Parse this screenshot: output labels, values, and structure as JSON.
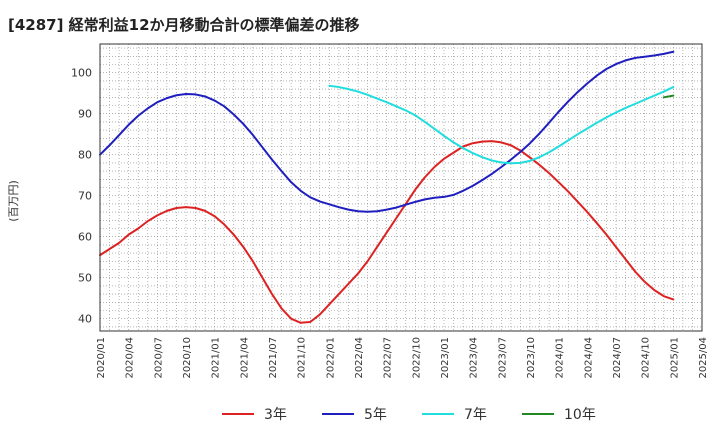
{
  "chart_data": {
    "type": "line",
    "title": "[4287]  経常利益12か月移動合計の標準偏差の推移",
    "ylabel": "(百万円)",
    "xlabel": "",
    "ylim": [
      37,
      107
    ],
    "yticks": [
      40,
      50,
      60,
      70,
      80,
      90,
      100
    ],
    "xlim": [
      "2020-01",
      "2025-04"
    ],
    "xticks": [
      "2020/01",
      "2020/04",
      "2020/07",
      "2020/10",
      "2021/01",
      "2021/04",
      "2021/07",
      "2021/10",
      "2022/01",
      "2022/04",
      "2022/07",
      "2022/10",
      "2023/01",
      "2023/04",
      "2023/07",
      "2023/10",
      "2024/01",
      "2024/04",
      "2024/07",
      "2024/10",
      "2025/01",
      "2025/04"
    ],
    "grid": true,
    "legend_position": "bottom",
    "series": [
      {
        "name": "3年",
        "color": "#dd2222",
        "points": [
          [
            "2020-01",
            55.5
          ],
          [
            "2020-02",
            57
          ],
          [
            "2020-03",
            58.5
          ],
          [
            "2020-04",
            60.5
          ],
          [
            "2020-05",
            62
          ],
          [
            "2020-06",
            63.8
          ],
          [
            "2020-07",
            65.2
          ],
          [
            "2020-08",
            66.3
          ],
          [
            "2020-09",
            67
          ],
          [
            "2020-10",
            67.2
          ],
          [
            "2020-11",
            67
          ],
          [
            "2020-12",
            66.3
          ],
          [
            "2021-01",
            65
          ],
          [
            "2021-02",
            63
          ],
          [
            "2021-03",
            60.5
          ],
          [
            "2021-04",
            57.5
          ],
          [
            "2021-05",
            54
          ],
          [
            "2021-06",
            50
          ],
          [
            "2021-07",
            46
          ],
          [
            "2021-08",
            42.5
          ],
          [
            "2021-09",
            40
          ],
          [
            "2021-10",
            39
          ],
          [
            "2021-11",
            39.2
          ],
          [
            "2021-12",
            41
          ],
          [
            "2022-01",
            43.5
          ],
          [
            "2022-02",
            46
          ],
          [
            "2022-03",
            48.5
          ],
          [
            "2022-04",
            51
          ],
          [
            "2022-05",
            54
          ],
          [
            "2022-06",
            57.5
          ],
          [
            "2022-07",
            61
          ],
          [
            "2022-08",
            64.5
          ],
          [
            "2022-09",
            68
          ],
          [
            "2022-10",
            71.5
          ],
          [
            "2022-11",
            74.5
          ],
          [
            "2022-12",
            77
          ],
          [
            "2023-01",
            79
          ],
          [
            "2023-02",
            80.5
          ],
          [
            "2023-03",
            82
          ],
          [
            "2023-04",
            82.8
          ],
          [
            "2023-05",
            83.2
          ],
          [
            "2023-06",
            83.3
          ],
          [
            "2023-07",
            83
          ],
          [
            "2023-08",
            82.3
          ],
          [
            "2023-09",
            81
          ],
          [
            "2023-10",
            79.3
          ],
          [
            "2023-11",
            77.5
          ],
          [
            "2023-12",
            75.5
          ],
          [
            "2024-01",
            73.3
          ],
          [
            "2024-02",
            71
          ],
          [
            "2024-03",
            68.5
          ],
          [
            "2024-04",
            66
          ],
          [
            "2024-05",
            63.3
          ],
          [
            "2024-06",
            60.5
          ],
          [
            "2024-07",
            57.5
          ],
          [
            "2024-08",
            54.5
          ],
          [
            "2024-09",
            51.5
          ],
          [
            "2024-10",
            49
          ],
          [
            "2024-11",
            47
          ],
          [
            "2024-12",
            45.5
          ],
          [
            "2025-01",
            44.7
          ]
        ]
      },
      {
        "name": "5年",
        "color": "#1f1fbf",
        "points": [
          [
            "2020-01",
            80
          ],
          [
            "2020-02",
            82.3
          ],
          [
            "2020-03",
            84.8
          ],
          [
            "2020-04",
            87.3
          ],
          [
            "2020-05",
            89.5
          ],
          [
            "2020-06",
            91.3
          ],
          [
            "2020-07",
            92.8
          ],
          [
            "2020-08",
            93.8
          ],
          [
            "2020-09",
            94.5
          ],
          [
            "2020-10",
            94.8
          ],
          [
            "2020-11",
            94.7
          ],
          [
            "2020-12",
            94.2
          ],
          [
            "2021-01",
            93.2
          ],
          [
            "2021-02",
            91.8
          ],
          [
            "2021-03",
            89.8
          ],
          [
            "2021-04",
            87.5
          ],
          [
            "2021-05",
            84.8
          ],
          [
            "2021-06",
            81.8
          ],
          [
            "2021-07",
            78.8
          ],
          [
            "2021-08",
            76
          ],
          [
            "2021-09",
            73.3
          ],
          [
            "2021-10",
            71.2
          ],
          [
            "2021-11",
            69.6
          ],
          [
            "2021-12",
            68.6
          ],
          [
            "2022-01",
            67.9
          ],
          [
            "2022-02",
            67.2
          ],
          [
            "2022-03",
            66.6
          ],
          [
            "2022-04",
            66.2
          ],
          [
            "2022-05",
            66.1
          ],
          [
            "2022-06",
            66.2
          ],
          [
            "2022-07",
            66.6
          ],
          [
            "2022-08",
            67.1
          ],
          [
            "2022-09",
            67.8
          ],
          [
            "2022-10",
            68.5
          ],
          [
            "2022-11",
            69.1
          ],
          [
            "2022-12",
            69.5
          ],
          [
            "2023-01",
            69.7
          ],
          [
            "2023-02",
            70.2
          ],
          [
            "2023-03",
            71.2
          ],
          [
            "2023-04",
            72.4
          ],
          [
            "2023-05",
            73.8
          ],
          [
            "2023-06",
            75.3
          ],
          [
            "2023-07",
            77
          ],
          [
            "2023-08",
            78.8
          ],
          [
            "2023-09",
            80.7
          ],
          [
            "2023-10",
            82.8
          ],
          [
            "2023-11",
            85.2
          ],
          [
            "2023-12",
            87.8
          ],
          [
            "2024-01",
            90.5
          ],
          [
            "2024-02",
            93
          ],
          [
            "2024-03",
            95.3
          ],
          [
            "2024-04",
            97.4
          ],
          [
            "2024-05",
            99.3
          ],
          [
            "2024-06",
            100.9
          ],
          [
            "2024-07",
            102.1
          ],
          [
            "2024-08",
            103
          ],
          [
            "2024-09",
            103.6
          ],
          [
            "2024-10",
            103.9
          ],
          [
            "2024-11",
            104.2
          ],
          [
            "2024-12",
            104.6
          ],
          [
            "2025-01",
            105.1
          ]
        ]
      },
      {
        "name": "7年",
        "color": "#22dddd",
        "points": [
          [
            "2022-01",
            96.8
          ],
          [
            "2022-02",
            96.5
          ],
          [
            "2022-03",
            96
          ],
          [
            "2022-04",
            95.4
          ],
          [
            "2022-05",
            94.6
          ],
          [
            "2022-06",
            93.7
          ],
          [
            "2022-07",
            92.8
          ],
          [
            "2022-08",
            91.8
          ],
          [
            "2022-09",
            90.8
          ],
          [
            "2022-10",
            89.6
          ],
          [
            "2022-11",
            88
          ],
          [
            "2022-12",
            86.3
          ],
          [
            "2023-01",
            84.6
          ],
          [
            "2023-02",
            83
          ],
          [
            "2023-03",
            81.6
          ],
          [
            "2023-04",
            80.4
          ],
          [
            "2023-05",
            79.4
          ],
          [
            "2023-06",
            78.6
          ],
          [
            "2023-07",
            78.1
          ],
          [
            "2023-08",
            77.9
          ],
          [
            "2023-09",
            78
          ],
          [
            "2023-10",
            78.5
          ],
          [
            "2023-11",
            79.4
          ],
          [
            "2023-12",
            80.6
          ],
          [
            "2024-01",
            82
          ],
          [
            "2024-02",
            83.5
          ],
          [
            "2024-03",
            85
          ],
          [
            "2024-04",
            86.4
          ],
          [
            "2024-05",
            87.8
          ],
          [
            "2024-06",
            89.1
          ],
          [
            "2024-07",
            90.3
          ],
          [
            "2024-08",
            91.4
          ],
          [
            "2024-09",
            92.4
          ],
          [
            "2024-10",
            93.4
          ],
          [
            "2024-11",
            94.4
          ],
          [
            "2024-12",
            95.4
          ],
          [
            "2025-01",
            96.5
          ]
        ]
      },
      {
        "name": "10年",
        "color": "#228822",
        "points": [
          [
            "2024-12",
            94.0
          ],
          [
            "2025-01",
            94.4
          ]
        ]
      }
    ]
  }
}
